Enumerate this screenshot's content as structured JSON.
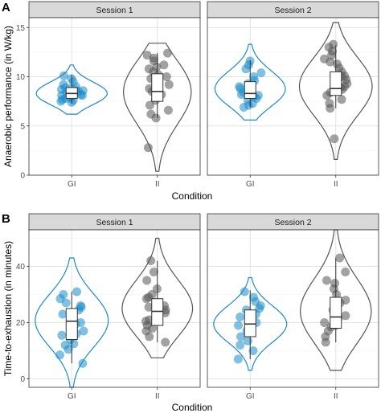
{
  "chart_data": [
    {
      "panel_label": "A",
      "type": "violin",
      "ylabel": "Anaerobic performance (in W/kg)",
      "xlabel": "Condition",
      "categories": [
        "GI",
        "II"
      ],
      "ylim": [
        0,
        16
      ],
      "yticks": [
        0,
        5,
        10,
        15
      ],
      "grid": true,
      "facets": [
        {
          "title": "Session 1",
          "groups": [
            {
              "name": "GI",
              "color": "#1a8cc8",
              "box": {
                "q1": 7.8,
                "median": 8.3,
                "q3": 8.9,
                "whisker_low": 7.3,
                "whisker_high": 10.2
              },
              "violin": {
                "min": 6.2,
                "max": 11.2,
                "peak": 8.1
              },
              "points": [
                7.4,
                7.6,
                7.7,
                7.8,
                7.9,
                8.0,
                8.1,
                8.2,
                8.3,
                8.3,
                8.4,
                8.5,
                8.6,
                8.7,
                8.8,
                8.9,
                9.0,
                9.2,
                9.5,
                9.8,
                10.1,
                7.5,
                8.1,
                8.6
              ]
            },
            {
              "name": "II",
              "color": "#555555",
              "box": {
                "q1": 7.5,
                "median": 8.5,
                "q3": 10.3,
                "whisker_low": 5.8,
                "whisker_high": 12.4
              },
              "violin": {
                "min": 0.4,
                "max": 13.4,
                "peak": 9.5
              },
              "points": [
                2.8,
                5.8,
                6.6,
                7.1,
                7.6,
                7.9,
                8.2,
                8.5,
                8.8,
                9.2,
                9.5,
                9.8,
                10.2,
                10.5,
                10.8,
                11.2,
                11.6,
                11.9,
                12.2,
                12.4,
                6.2,
                10.0,
                11.0
              ]
            }
          ]
        },
        {
          "title": "Session 2",
          "groups": [
            {
              "name": "GI",
              "color": "#1a8cc8",
              "box": {
                "q1": 7.8,
                "median": 8.3,
                "q3": 9.5,
                "whisker_low": 6.9,
                "whisker_high": 11.7
              },
              "violin": {
                "min": 5.6,
                "max": 13.3,
                "peak": 8.4
              },
              "points": [
                6.9,
                7.3,
                7.6,
                7.8,
                8.0,
                8.2,
                8.4,
                8.6,
                8.8,
                9.0,
                9.3,
                9.6,
                10.0,
                10.4,
                10.8,
                11.2,
                11.6,
                7.1,
                8.1,
                9.1
              ]
            },
            {
              "name": "II",
              "color": "#555555",
              "box": {
                "q1": 8.1,
                "median": 8.8,
                "q3": 10.5,
                "whisker_low": 6.8,
                "whisker_high": 13.2
              },
              "violin": {
                "min": 1.6,
                "max": 15.5,
                "peak": 9.2
              },
              "points": [
                3.7,
                6.8,
                7.3,
                7.7,
                8.1,
                8.4,
                8.7,
                9.0,
                9.3,
                9.7,
                10.1,
                10.5,
                10.9,
                11.3,
                11.8,
                12.2,
                12.6,
                13.0,
                13.3,
                8.9,
                10.0,
                11.5
              ]
            }
          ]
        }
      ]
    },
    {
      "panel_label": "B",
      "type": "violin",
      "ylabel": "Time-to-exhaustion (in minutes)",
      "xlabel": "Condition",
      "categories": [
        "GI",
        "II"
      ],
      "ylim": [
        -3,
        53
      ],
      "yticks": [
        0,
        20,
        40
      ],
      "grid": true,
      "facets": [
        {
          "title": "Session 1",
          "groups": [
            {
              "name": "GI",
              "color": "#1a8cc8",
              "box": {
                "q1": 14.0,
                "median": 20.5,
                "q3": 25.0,
                "whisker_low": 5.5,
                "whisker_high": 31.0
              },
              "violin": {
                "min": -3.0,
                "max": 43.0,
                "peak": 21.0
              },
              "points": [
                5.5,
                8.5,
                10.5,
                12.5,
                14.0,
                15.5,
                17.0,
                18.5,
                20.0,
                21.0,
                22.0,
                23.0,
                24.5,
                25.5,
                27.0,
                28.5,
                30.0,
                31.0,
                16.0,
                19.5,
                26.0,
                12.0
              ]
            },
            {
              "name": "II",
              "color": "#555555",
              "box": {
                "q1": 19.0,
                "median": 24.0,
                "q3": 28.5,
                "whisker_low": 13.0,
                "whisker_high": 42.0
              },
              "violin": {
                "min": 7.5,
                "max": 50.0,
                "peak": 23.0
              },
              "points": [
                13.0,
                15.0,
                17.0,
                19.0,
                20.5,
                22.0,
                23.5,
                24.5,
                25.5,
                27.0,
                28.5,
                30.0,
                32.0,
                35.0,
                38.0,
                42.0,
                18.0,
                26.0,
                29.0,
                21.0
              ]
            }
          ]
        },
        {
          "title": "Session 2",
          "groups": [
            {
              "name": "GI",
              "color": "#1a8cc8",
              "box": {
                "q1": 15.0,
                "median": 19.5,
                "q3": 24.5,
                "whisker_low": 7.0,
                "whisker_high": 31.5
              },
              "violin": {
                "min": 3.0,
                "max": 36.0,
                "peak": 19.5
              },
              "points": [
                7.0,
                10.0,
                12.0,
                13.5,
                15.0,
                16.5,
                18.0,
                19.0,
                20.0,
                21.5,
                23.0,
                24.5,
                26.0,
                27.5,
                29.0,
                31.0,
                17.0,
                22.0,
                25.0
              ]
            },
            {
              "name": "II",
              "color": "#555555",
              "box": {
                "q1": 18.0,
                "median": 22.0,
                "q3": 29.0,
                "whisker_low": 13.0,
                "whisker_high": 43.0
              },
              "violin": {
                "min": 3.0,
                "max": 53.0,
                "peak": 22.0
              },
              "points": [
                13.0,
                15.0,
                17.0,
                18.5,
                20.0,
                21.5,
                23.0,
                24.5,
                26.0,
                28.0,
                30.0,
                32.0,
                35.0,
                38.0,
                43.0,
                19.0,
                22.5,
                27.0,
                34.0
              ]
            }
          ]
        }
      ]
    }
  ]
}
